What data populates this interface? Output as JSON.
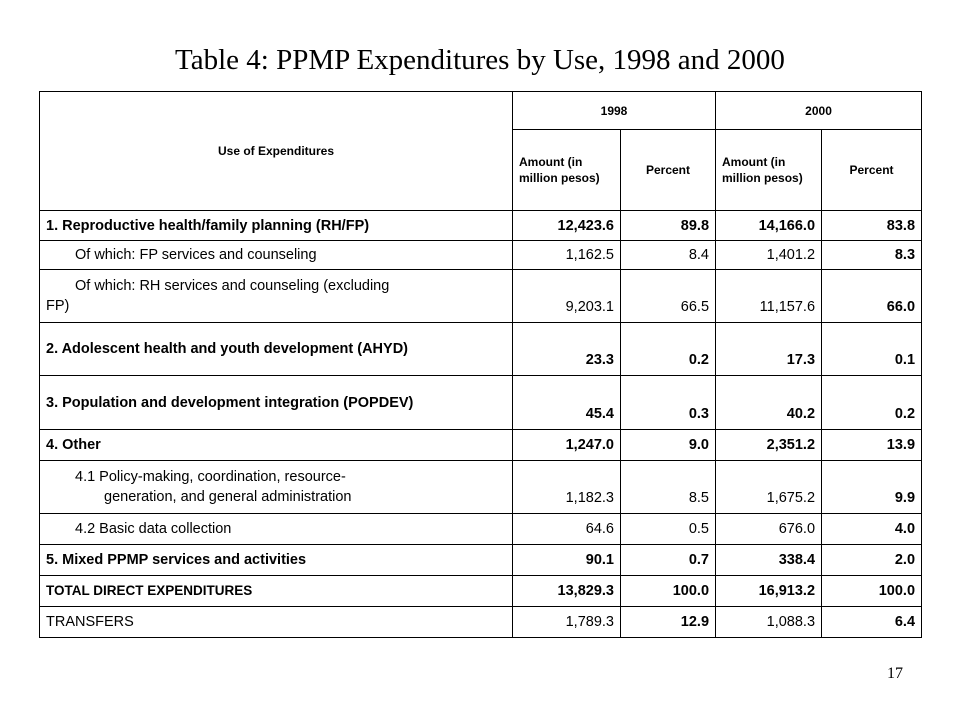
{
  "title": "Table 4: PPMP Expenditures by Use, 1998 and 2000",
  "page_number": "17",
  "header": {
    "use_label": "Use of Expenditures",
    "year1": "1998",
    "year2": "2000",
    "amount1": "Amount (in million pesos)",
    "percent1": "Percent",
    "amount2": "Amount (in million pesos)",
    "percent2": "Percent"
  },
  "rows": [
    {
      "label": "1.  Reproductive health/family planning  (RH/FP)",
      "a1": "12,423.6",
      "p1": "89.8",
      "a2": "14,166.0",
      "p2": "83.8"
    },
    {
      "label": "Of which:  FP services and counseling",
      "a1": "1,162.5",
      "p1": "8.4",
      "a2": "1,401.2",
      "p2": "8.3"
    },
    {
      "label_line1": "Of which: RH services and counseling (excluding",
      "label_line2": "FP)",
      "a1": "9,203.1",
      "p1": "66.5",
      "a2": "11,157.6",
      "p2": "66.0"
    },
    {
      "label": "2.  Adolescent health and youth development (AHYD)",
      "a1": "23.3",
      "p1": "0.2",
      "a2": "17.3",
      "p2": "0.1"
    },
    {
      "label": "3.  Population and development integration (POPDEV)",
      "a1": "45.4",
      "p1": "0.3",
      "a2": "40.2",
      "p2": "0.2"
    },
    {
      "label": "4.  Other",
      "a1": "1,247.0",
      "p1": "9.0",
      "a2": "2,351.2",
      "p2": "13.9"
    },
    {
      "label_line1": "4.1 Policy-making, coordination, resource-",
      "label_line2": "generation, and general administration",
      "a1": "1,182.3",
      "p1": "8.5",
      "a2": "1,675.2",
      "p2": "9.9"
    },
    {
      "label": "4.2  Basic data collection",
      "a1": "64.6",
      "p1": "0.5",
      "a2": "676.0",
      "p2": "4.0"
    },
    {
      "label": "5.  Mixed PPMP services and activities",
      "a1": "90.1",
      "p1": "0.7",
      "a2": "338.4",
      "p2": "2.0"
    },
    {
      "label": "TOTAL DIRECT EXPENDITURES",
      "a1": "13,829.3",
      "p1": "100.0",
      "a2": "16,913.2",
      "p2": "100.0"
    },
    {
      "label": "TRANSFERS",
      "a1": "1,789.3",
      "p1": "12.9",
      "a2": "1,088.3",
      "p2": "6.4"
    }
  ]
}
